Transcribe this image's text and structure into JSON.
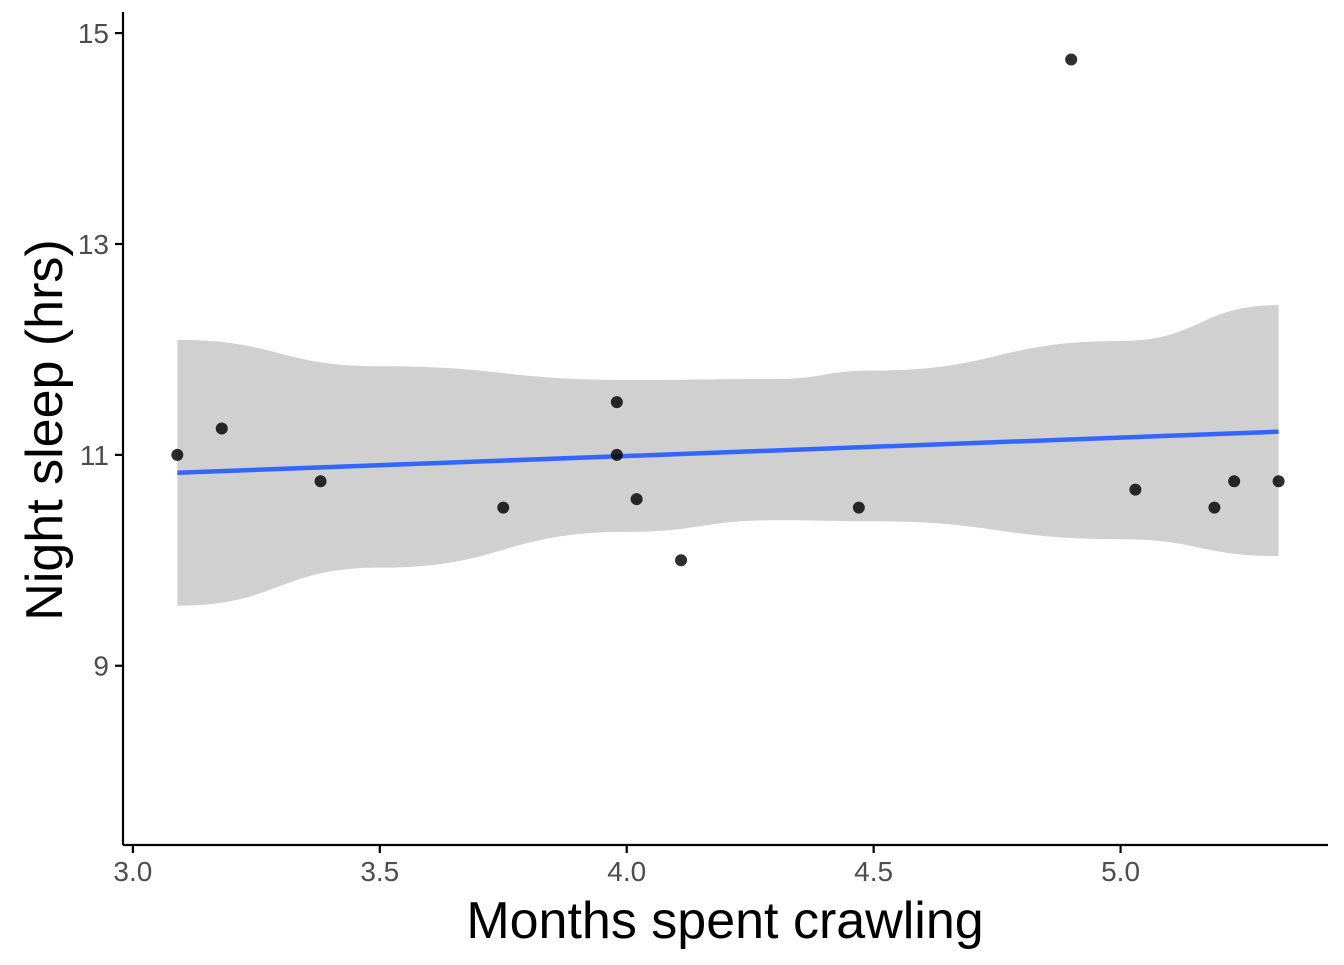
{
  "chart_data": {
    "type": "scatter",
    "xlabel": "Months spent crawling",
    "ylabel": "Night sleep (hrs)",
    "xlim": [
      2.98,
      5.42
    ],
    "ylim": [
      7.3,
      15.2
    ],
    "x_ticks": [
      3.0,
      3.5,
      4.0,
      4.5,
      5.0
    ],
    "x_tick_labels": [
      "3.0",
      "3.5",
      "4.0",
      "4.5",
      "5.0"
    ],
    "y_ticks": [
      9,
      11,
      13,
      15
    ],
    "y_tick_labels": [
      "9",
      "11",
      "13",
      "15"
    ],
    "grid": false,
    "points": [
      {
        "x": 3.09,
        "y": 11.0
      },
      {
        "x": 3.18,
        "y": 11.25
      },
      {
        "x": 3.38,
        "y": 10.75
      },
      {
        "x": 3.75,
        "y": 10.5
      },
      {
        "x": 3.98,
        "y": 11.5
      },
      {
        "x": 3.98,
        "y": 11.0
      },
      {
        "x": 4.02,
        "y": 10.58
      },
      {
        "x": 4.11,
        "y": 10.0
      },
      {
        "x": 4.47,
        "y": 10.5
      },
      {
        "x": 4.9,
        "y": 14.75
      },
      {
        "x": 5.03,
        "y": 10.67
      },
      {
        "x": 5.19,
        "y": 10.5
      },
      {
        "x": 5.23,
        "y": 10.75
      },
      {
        "x": 5.32,
        "y": 10.75
      }
    ],
    "fit": {
      "type": "linear",
      "x": [
        3.09,
        5.32
      ],
      "y": [
        10.83,
        11.22
      ]
    },
    "confidence_band": {
      "x": [
        3.09,
        3.5,
        4.0,
        4.3,
        4.5,
        5.0,
        5.32
      ],
      "lower": [
        9.57,
        9.93,
        10.27,
        10.38,
        10.37,
        10.2,
        10.04
      ],
      "upper": [
        12.09,
        11.84,
        11.71,
        11.72,
        11.8,
        12.08,
        12.42
      ]
    },
    "colors": {
      "points": "#000000",
      "fit_line": "#3366ff",
      "band": "#cccccc",
      "axis": "#000000",
      "tick_label": "#4d4d4d"
    }
  }
}
